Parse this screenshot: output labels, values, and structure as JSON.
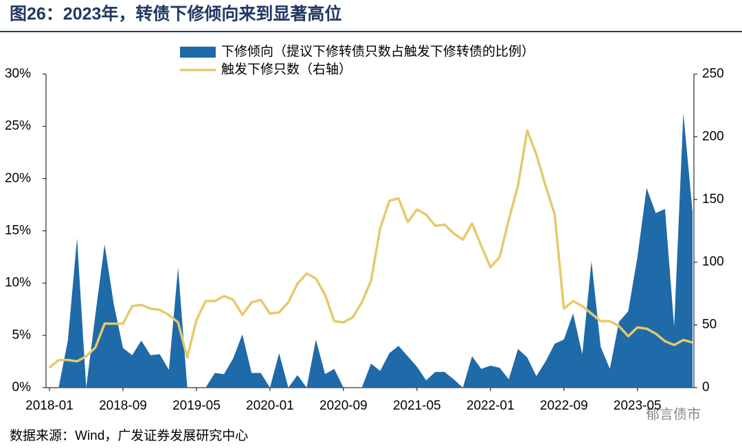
{
  "chart_data": {
    "type": "area-line",
    "title": "图26：2023年，转债下修倾向来到显著高位",
    "source": "数据来源：Wind，广发证券发展研究中心",
    "watermark": "郁言债市",
    "categories": [
      "2018-01",
      null,
      null,
      null,
      null,
      null,
      null,
      null,
      "2018-09",
      null,
      null,
      null,
      null,
      null,
      null,
      null,
      "2019-05",
      null,
      null,
      null,
      null,
      null,
      null,
      null,
      "2020-01",
      null,
      null,
      null,
      null,
      null,
      null,
      null,
      "2020-09",
      null,
      null,
      null,
      null,
      null,
      null,
      null,
      "2021-05",
      null,
      null,
      null,
      null,
      null,
      null,
      null,
      "2022-01",
      null,
      null,
      null,
      null,
      null,
      null,
      null,
      "2022-09",
      null,
      null,
      null,
      null,
      null,
      null,
      null,
      "2023-05",
      null,
      null,
      null,
      null,
      null,
      null
    ],
    "series": [
      {
        "name": "下修倾向（提议下修转债只数占触发下修转债的比例）",
        "color": "#1f6aa8",
        "type": "area",
        "values": [
          0,
          0,
          4.5,
          14.3,
          0,
          7,
          13.7,
          8,
          3.8,
          3.1,
          4.5,
          3.1,
          3.2,
          1.7,
          11.5,
          0,
          0,
          0,
          1.4,
          1.3,
          2.8,
          5.1,
          1.4,
          1.4,
          0,
          3.3,
          0,
          1.2,
          0,
          4.6,
          1.3,
          1.8,
          0,
          0,
          0,
          2.3,
          1.6,
          3.3,
          4.0,
          3.0,
          2.0,
          0.7,
          1.5,
          1.5,
          0.8,
          0,
          3.0,
          1.8,
          2.1,
          1.9,
          0.8,
          3.7,
          2.9,
          1.1,
          2.5,
          4.2,
          4.6,
          7.1,
          3.2,
          12.1,
          3.9,
          1.8,
          6.3,
          7.3,
          12.5,
          19.1,
          16.7,
          17.1,
          5.8,
          26.3,
          16.8
        ]
      },
      {
        "name": "触发下修只数（右轴）",
        "color": "#e6c96a",
        "type": "line",
        "axis": "y2",
        "values": [
          16,
          22,
          22,
          21,
          25,
          32,
          51,
          51,
          51,
          65,
          66,
          63,
          62,
          58,
          52,
          24,
          54,
          69,
          69,
          73,
          70,
          58,
          68,
          70,
          59,
          60,
          68,
          83,
          91,
          87,
          74,
          53,
          52,
          56,
          68,
          85,
          127,
          149,
          151,
          132,
          142,
          138,
          129,
          130,
          123,
          118,
          131,
          113,
          96,
          104,
          134,
          161,
          205,
          186,
          161,
          138,
          63,
          69,
          65,
          59,
          53,
          53,
          49,
          41,
          48,
          47,
          43,
          37,
          34,
          38,
          36
        ]
      }
    ],
    "ylim": [
      0,
      30
    ],
    "yticks": [
      {
        "value": 0,
        "label": "0%"
      },
      {
        "value": 5,
        "label": "5%"
      },
      {
        "value": 10,
        "label": "10%"
      },
      {
        "value": 15,
        "label": "15%"
      },
      {
        "value": 20,
        "label": "20%"
      },
      {
        "value": 25,
        "label": "25%"
      },
      {
        "value": 30,
        "label": "30%"
      }
    ],
    "y2lim": [
      0,
      250
    ],
    "y2ticks": [
      0,
      50,
      100,
      150,
      200,
      250
    ],
    "legend": "top"
  }
}
